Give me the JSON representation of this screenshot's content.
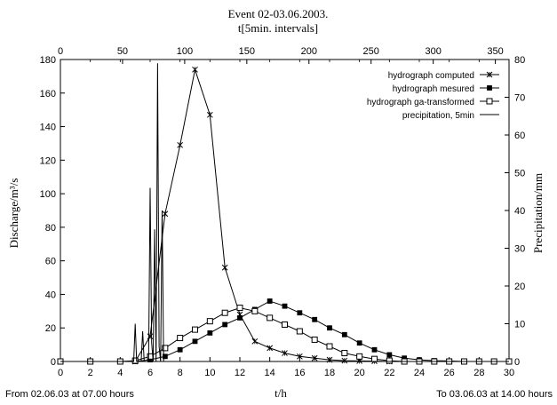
{
  "chart_data": {
    "type": "line",
    "title": "Event 02-03.06.2003.",
    "x2label": "t[5min. intervals]",
    "xlabel": "t/h",
    "ylabel": "Discharge/m³/s",
    "y2label": "Precipitation/mm",
    "footer_left": "From 02.06.03 at 07.00 hours",
    "footer_right": "To 03.06.03 at 14.00 hours",
    "xlim": [
      0,
      30
    ],
    "ylim": [
      0,
      180
    ],
    "x2lim": [
      0,
      361
    ],
    "y2lim": [
      0,
      80
    ],
    "xticks": [
      "0",
      "2",
      "4",
      "6",
      "8",
      "10",
      "12",
      "14",
      "16",
      "18",
      "20",
      "22",
      "24",
      "26",
      "28",
      "30"
    ],
    "yticks": [
      "0",
      "20",
      "40",
      "60",
      "80",
      "100",
      "120",
      "140",
      "160",
      "180"
    ],
    "x2ticks": [
      "0",
      "50",
      "100",
      "150",
      "200",
      "250",
      "300",
      "350"
    ],
    "y2ticks": [
      "0",
      "10",
      "20",
      "30",
      "40",
      "50",
      "60",
      "70",
      "80"
    ],
    "legend_position": "top-right",
    "grid": false,
    "series": [
      {
        "name": "hydrograph computed",
        "marker": "x",
        "axis": "primary",
        "x": [
          0,
          2,
          4,
          5,
          6,
          7,
          8,
          9,
          10,
          11,
          12,
          13,
          14,
          15,
          16,
          17,
          18,
          19,
          20,
          21,
          22,
          23,
          24,
          25,
          26,
          27,
          28,
          29,
          30
        ],
        "y": [
          0,
          0,
          0,
          0,
          15,
          88,
          129,
          174,
          147,
          56,
          28,
          12,
          8,
          5,
          3,
          2,
          1,
          0.5,
          0.3,
          0.2,
          0,
          0,
          0,
          0,
          0,
          0,
          0,
          0,
          0
        ]
      },
      {
        "name": "hydrograph mesured",
        "marker": "filled-square",
        "axis": "primary",
        "x": [
          0,
          2,
          4,
          5,
          6,
          7,
          8,
          9,
          10,
          11,
          12,
          13,
          14,
          15,
          16,
          17,
          18,
          19,
          20,
          21,
          22,
          23,
          24,
          25,
          26,
          27,
          28,
          29,
          30
        ],
        "y": [
          0,
          0,
          0,
          0,
          1,
          3,
          7,
          12,
          17,
          22,
          26,
          31,
          36,
          33,
          29,
          25,
          20,
          16,
          11,
          7,
          4,
          2,
          1,
          0.5,
          0.3,
          0,
          0,
          0,
          0
        ]
      },
      {
        "name": "hydrograph ga-transformed",
        "marker": "open-square",
        "axis": "primary",
        "x": [
          0,
          2,
          4,
          5,
          6,
          7,
          8,
          9,
          10,
          11,
          12,
          13,
          14,
          15,
          16,
          17,
          18,
          19,
          20,
          21,
          22,
          23,
          24,
          25,
          26,
          27,
          28,
          29,
          30
        ],
        "y": [
          0,
          0,
          0,
          0.5,
          3,
          8,
          14,
          19,
          24,
          29,
          32,
          30,
          26,
          22,
          18,
          13,
          9,
          5,
          3,
          1.5,
          0.5,
          0,
          0,
          0,
          0,
          0,
          0,
          0,
          0
        ]
      },
      {
        "name": "precipitation, 5min",
        "marker": "none",
        "axis": "secondary",
        "x": [
          0,
          4.9,
          5.0,
          5.1,
          5.4,
          5.5,
          5.6,
          5.9,
          6.0,
          6.1,
          6.2,
          6.3,
          6.4,
          6.5,
          6.6,
          6.7,
          6.8,
          6.9,
          7.0,
          8.0,
          30
        ],
        "y": [
          0,
          0,
          10,
          0,
          0,
          8,
          0,
          0,
          46,
          5,
          0,
          35,
          0,
          79,
          4,
          0,
          40,
          0,
          0,
          0,
          0
        ]
      }
    ]
  }
}
